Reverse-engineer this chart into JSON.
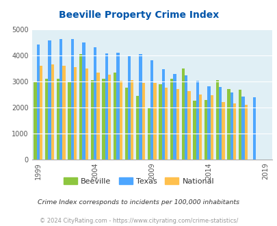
{
  "title": "Beeville Property Crime Index",
  "years": [
    1999,
    2000,
    2001,
    2002,
    2003,
    2004,
    2005,
    2006,
    2007,
    2008,
    2009,
    2010,
    2011,
    2012,
    2013,
    2014,
    2015,
    2016,
    2017,
    2018,
    2019
  ],
  "beeville": [
    3000,
    3100,
    3100,
    3000,
    4050,
    3050,
    3100,
    3350,
    2750,
    2430,
    2000,
    2880,
    3100,
    3500,
    2250,
    2280,
    3050,
    2700,
    2680,
    0,
    0
  ],
  "texas": [
    4420,
    4570,
    4630,
    4620,
    4500,
    4320,
    4080,
    4110,
    4000,
    4050,
    3800,
    3460,
    3280,
    3230,
    3030,
    2820,
    2780,
    2570,
    2410,
    2390,
    0
  ],
  "national": [
    3600,
    3660,
    3610,
    3540,
    3490,
    3330,
    3260,
    3030,
    3060,
    2940,
    2930,
    2750,
    2700,
    2620,
    2490,
    2460,
    2210,
    2150,
    2110,
    0,
    0
  ],
  "beeville_color": "#8dc63f",
  "texas_color": "#4da6ff",
  "national_color": "#ffc04d",
  "bg_color": "#e0eff5",
  "title_color": "#0055aa",
  "ylabel_max": 5000,
  "subtitle": "Crime Index corresponds to incidents per 100,000 inhabitants",
  "footer": "© 2024 CityRating.com - https://www.cityrating.com/crime-statistics/",
  "legend_labels": [
    "Beeville",
    "Texas",
    "National"
  ],
  "xtick_years": [
    1999,
    2004,
    2009,
    2014,
    2019
  ]
}
